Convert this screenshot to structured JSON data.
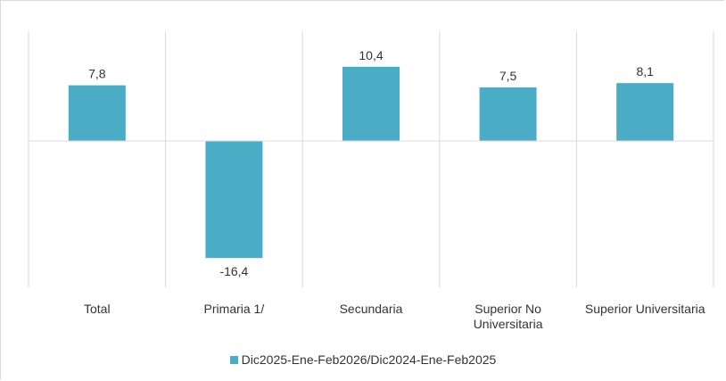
{
  "chart_data": {
    "type": "bar",
    "categories": [
      "Total",
      "Primaria 1/",
      "Secundaria",
      "Superior No Universitaria",
      "Superior Universitaria"
    ],
    "category_lines": [
      [
        "Total"
      ],
      [
        "Primaria 1/"
      ],
      [
        "Secundaria"
      ],
      [
        "Superior No",
        "Universitaria"
      ],
      [
        "Superior Universitaria"
      ]
    ],
    "series": [
      {
        "name": "Dic2025-Ene-Feb2026/Dic2024-Ene-Feb2025",
        "values": [
          7.8,
          -16.4,
          10.4,
          7.5,
          8.1
        ],
        "labels": [
          "7,8",
          "-16,4",
          "10,4",
          "7,5",
          "8,1"
        ],
        "color": "#4bacc6"
      }
    ],
    "ylim": [
      -20,
      15
    ],
    "grid": false,
    "legend": "bottom"
  }
}
